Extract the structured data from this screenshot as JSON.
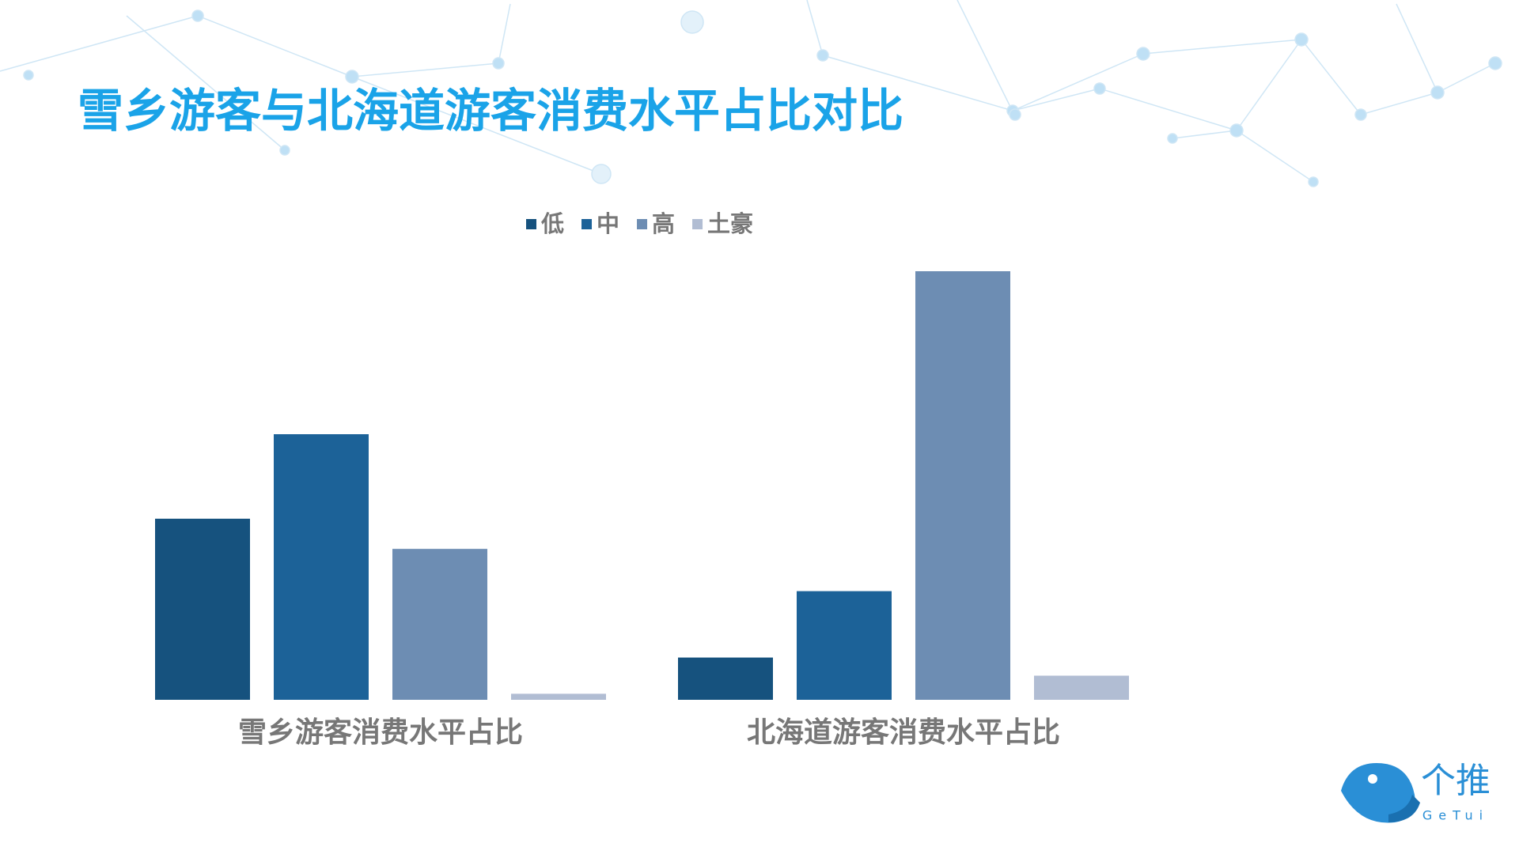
{
  "chart_data": {
    "type": "bar",
    "title": "雪乡游客与北海道游客消费水平占比对比",
    "categories": [
      "雪乡游客消费水平占比",
      "北海道游客消费水平占比"
    ],
    "series": [
      {
        "name": "低",
        "color": "#16527e",
        "values": [
          30,
          7
        ]
      },
      {
        "name": "中",
        "color": "#1c6298",
        "values": [
          44,
          18
        ]
      },
      {
        "name": "高",
        "color": "#6d8db3",
        "values": [
          25,
          71
        ]
      },
      {
        "name": "土豪",
        "color": "#b1bdd3",
        "values": [
          1,
          4
        ]
      }
    ],
    "ylim": [
      0,
      71
    ]
  },
  "logo": {
    "name": "个推",
    "sub": "GeTui"
  }
}
